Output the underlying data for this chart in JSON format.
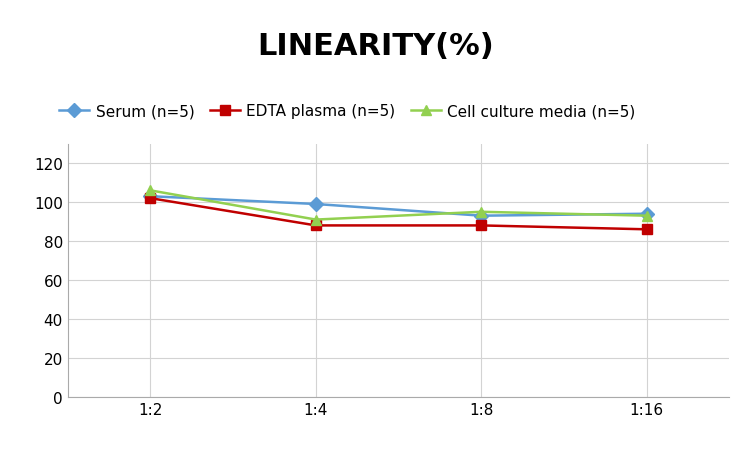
{
  "title": "LINEARITY(%)",
  "x_labels": [
    "1:2",
    "1:4",
    "1:8",
    "1:16"
  ],
  "x_positions": [
    0,
    1,
    2,
    3
  ],
  "series": [
    {
      "label": "Serum (n=5)",
      "color": "#5B9BD5",
      "marker": "D",
      "marker_color": "#5B9BD5",
      "values": [
        103,
        99,
        93,
        94
      ]
    },
    {
      "label": "EDTA plasma (n=5)",
      "color": "#C00000",
      "marker": "s",
      "marker_color": "#C00000",
      "values": [
        102,
        88,
        88,
        86
      ]
    },
    {
      "label": "Cell culture media (n=5)",
      "color": "#92D050",
      "marker": "^",
      "marker_color": "#92D050",
      "values": [
        106,
        91,
        95,
        93
      ]
    }
  ],
  "ylim": [
    0,
    130
  ],
  "yticks": [
    0,
    20,
    40,
    60,
    80,
    100,
    120
  ],
  "title_fontsize": 22,
  "legend_fontsize": 11,
  "tick_fontsize": 11,
  "background_color": "#ffffff",
  "grid_color": "#d3d3d3"
}
